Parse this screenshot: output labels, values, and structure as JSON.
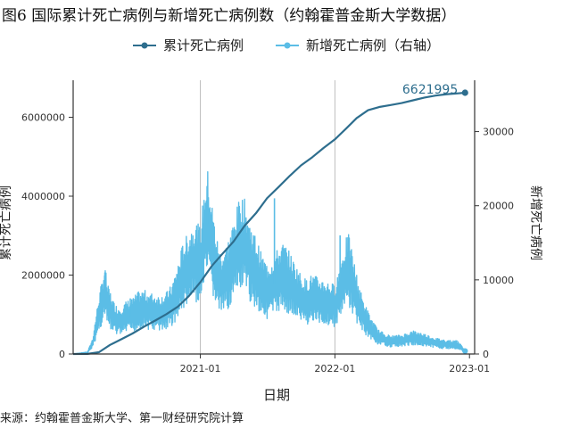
{
  "title": "图6 国际累计死亡病例与新增死亡病例数（约翰霍普金斯大学数据）",
  "source": "来源：约翰霍普金斯大学、第一财经研究院计算",
  "chart_data": {
    "type": "line",
    "xlabel": "日期",
    "ylabel_left": "累计死亡病例",
    "ylabel_right": "新增死亡病例",
    "x_ticks": [
      "2021-01",
      "2022-01",
      "2023-01"
    ],
    "x_range": [
      "2020-01-22",
      "2023-01-15"
    ],
    "ylim_left": [
      0,
      6621995
    ],
    "yticks_left": [
      0,
      2000000,
      4000000,
      6000000
    ],
    "ytick_labels_left": [
      "0",
      "2000000",
      "4000000",
      "6000000"
    ],
    "ylim_right": [
      0,
      35000
    ],
    "yticks_right": [
      0,
      10000,
      20000,
      30000
    ],
    "ytick_labels_right": [
      "0",
      "10000",
      "20000",
      "30000"
    ],
    "grid": "vertical only",
    "legend": "top-center",
    "colors": {
      "cumulative": "#2e6e8e",
      "daily": "#5bbde6"
    },
    "series": [
      {
        "name": "累计死亡病例",
        "axis": "left",
        "color": "#2e6e8e",
        "marker": "end-point",
        "end_label": "6621995",
        "points": [
          [
            "2020-01-22",
            0
          ],
          [
            "2020-03-01",
            3000
          ],
          [
            "2020-04-01",
            45000
          ],
          [
            "2020-05-01",
            230000
          ],
          [
            "2020-06-01",
            375000
          ],
          [
            "2020-07-01",
            520000
          ],
          [
            "2020-08-01",
            690000
          ],
          [
            "2020-09-01",
            850000
          ],
          [
            "2020-10-01",
            1010000
          ],
          [
            "2020-11-01",
            1200000
          ],
          [
            "2020-12-01",
            1470000
          ],
          [
            "2021-01-01",
            1820000
          ],
          [
            "2021-02-01",
            2230000
          ],
          [
            "2021-03-01",
            2530000
          ],
          [
            "2021-04-01",
            2850000
          ],
          [
            "2021-05-01",
            3250000
          ],
          [
            "2021-06-01",
            3570000
          ],
          [
            "2021-07-01",
            3950000
          ],
          [
            "2021-08-01",
            4230000
          ],
          [
            "2021-09-01",
            4520000
          ],
          [
            "2021-10-01",
            4780000
          ],
          [
            "2021-11-01",
            4990000
          ],
          [
            "2021-12-01",
            5220000
          ],
          [
            "2022-01-01",
            5440000
          ],
          [
            "2022-02-01",
            5720000
          ],
          [
            "2022-03-01",
            5980000
          ],
          [
            "2022-04-01",
            6180000
          ],
          [
            "2022-05-01",
            6260000
          ],
          [
            "2022-06-01",
            6310000
          ],
          [
            "2022-07-01",
            6360000
          ],
          [
            "2022-08-01",
            6430000
          ],
          [
            "2022-09-01",
            6500000
          ],
          [
            "2022-10-01",
            6550000
          ],
          [
            "2022-11-01",
            6585000
          ],
          [
            "2022-12-01",
            6606000
          ],
          [
            "2022-12-20",
            6621995
          ]
        ]
      },
      {
        "name": "新增死亡病例（右轴）",
        "axis": "right",
        "color": "#5bbde6",
        "marker": "end-point",
        "end_label": "400",
        "points": [
          [
            "2020-01-22",
            0
          ],
          [
            "2020-03-01",
            200
          ],
          [
            "2020-03-15",
            1500
          ],
          [
            "2020-04-01",
            5500
          ],
          [
            "2020-04-10",
            7000
          ],
          [
            "2020-04-17",
            8500
          ],
          [
            "2020-04-24",
            6500
          ],
          [
            "2020-05-01",
            6000
          ],
          [
            "2020-05-10",
            5000
          ],
          [
            "2020-05-20",
            4500
          ],
          [
            "2020-06-01",
            4500
          ],
          [
            "2020-06-15",
            5000
          ],
          [
            "2020-07-01",
            5200
          ],
          [
            "2020-07-15",
            5800
          ],
          [
            "2020-08-01",
            6000
          ],
          [
            "2020-08-15",
            5800
          ],
          [
            "2020-09-01",
            5600
          ],
          [
            "2020-09-15",
            5500
          ],
          [
            "2020-10-01",
            5800
          ],
          [
            "2020-10-15",
            6500
          ],
          [
            "2020-11-01",
            8500
          ],
          [
            "2020-11-15",
            10500
          ],
          [
            "2020-12-01",
            11500
          ],
          [
            "2020-12-15",
            12500
          ],
          [
            "2021-01-01",
            12000
          ],
          [
            "2021-01-10",
            15000
          ],
          [
            "2021-01-20",
            17500
          ],
          [
            "2021-01-28",
            15500
          ],
          [
            "2021-02-10",
            12000
          ],
          [
            "2021-02-20",
            10000
          ],
          [
            "2021-03-01",
            9500
          ],
          [
            "2021-03-15",
            10500
          ],
          [
            "2021-04-01",
            12500
          ],
          [
            "2021-04-20",
            15000
          ],
          [
            "2021-05-01",
            14500
          ],
          [
            "2021-05-15",
            12500
          ],
          [
            "2021-06-01",
            11000
          ],
          [
            "2021-06-15",
            9500
          ],
          [
            "2021-07-01",
            8500
          ],
          [
            "2021-07-15",
            9000
          ],
          [
            "2021-08-01",
            10000
          ],
          [
            "2021-08-15",
            10500
          ],
          [
            "2021-09-01",
            9500
          ],
          [
            "2021-09-15",
            8500
          ],
          [
            "2021-10-01",
            7500
          ],
          [
            "2021-10-15",
            7000
          ],
          [
            "2021-11-01",
            7500
          ],
          [
            "2021-11-15",
            7200
          ],
          [
            "2021-12-01",
            7000
          ],
          [
            "2021-12-15",
            6800
          ],
          [
            "2022-01-01",
            6500
          ],
          [
            "2022-01-15",
            8500
          ],
          [
            "2022-01-25",
            10000
          ],
          [
            "2022-02-05",
            11500
          ],
          [
            "2022-02-15",
            10000
          ],
          [
            "2022-03-01",
            7500
          ],
          [
            "2022-03-15",
            5500
          ],
          [
            "2022-04-01",
            4000
          ],
          [
            "2022-04-15",
            3000
          ],
          [
            "2022-05-01",
            2200
          ],
          [
            "2022-06-01",
            1700
          ],
          [
            "2022-07-01",
            1800
          ],
          [
            "2022-08-01",
            2200
          ],
          [
            "2022-09-01",
            1900
          ],
          [
            "2022-10-01",
            1500
          ],
          [
            "2022-11-01",
            1300
          ],
          [
            "2022-12-01",
            1200
          ],
          [
            "2022-12-20",
            400
          ]
        ],
        "spikes": [
          [
            "2020-04-17",
            11000
          ],
          [
            "2020-06-25",
            7500
          ],
          [
            "2021-01-20",
            20000
          ],
          [
            "2021-07-21",
            21000
          ],
          [
            "2022-01-15",
            16000
          ],
          [
            "2022-02-10",
            13000
          ]
        ]
      }
    ]
  }
}
